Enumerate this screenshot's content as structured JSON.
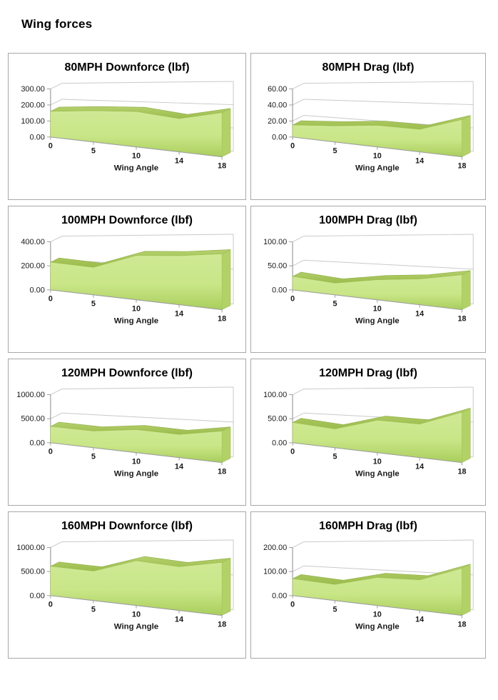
{
  "page": {
    "title": "Wing forces"
  },
  "layout": {
    "columns": 2,
    "rows": 4,
    "grid_on": true,
    "legend": "none"
  },
  "colors": {
    "area_top": "#cfe995",
    "area_mid": "#c9e687",
    "area_bottom": "#a9ce5c",
    "ribbon_light": "#b4d16c",
    "ribbon_dark": "#9cbc4c",
    "ribbon_edge": "#8fae45",
    "side_face": "#b2d166",
    "gridline": "#c9c9c9",
    "axis": "#9e9e9e",
    "text": "#1a1a1a",
    "border": "#a8a8a8"
  },
  "chart_data": [
    {
      "type": "area",
      "title": "80MPH Downforce (lbf)",
      "xlabel": "Wing Angle",
      "categories": [
        "0",
        "5",
        "10",
        "14",
        "18"
      ],
      "values": [
        160,
        175,
        180,
        155,
        190
      ],
      "ylim": [
        0,
        300
      ],
      "yticks": [
        "300.00",
        "200.00",
        "100.00",
        "0.00"
      ]
    },
    {
      "type": "area",
      "title": "80MPH Drag (lbf)",
      "xlabel": "Wing Angle",
      "categories": [
        "0",
        "5",
        "10",
        "14",
        "18"
      ],
      "values": [
        15,
        18,
        22,
        21,
        32
      ],
      "ylim": [
        0,
        60
      ],
      "yticks": [
        "60.00",
        "40.00",
        "20.00",
        "0.00"
      ]
    },
    {
      "type": "area",
      "title": "100MPH Downforce (lbf)",
      "xlabel": "Wing Angle",
      "categories": [
        "0",
        "5",
        "10",
        "14",
        "18"
      ],
      "values": [
        230,
        205,
        300,
        305,
        320
      ],
      "ylim": [
        0,
        400
      ],
      "yticks": [
        "400.00",
        "200.00",
        "0.00"
      ]
    },
    {
      "type": "area",
      "title": "100MPH Drag (lbf)",
      "xlabel": "Wing Angle",
      "categories": [
        "0",
        "5",
        "10",
        "14",
        "18"
      ],
      "values": [
        28,
        22,
        34,
        40,
        50
      ],
      "ylim": [
        0,
        100
      ],
      "yticks": [
        "100.00",
        "50.00",
        "0.00"
      ]
    },
    {
      "type": "area",
      "title": "120MPH Downforce (lbf)",
      "xlabel": "Wing Angle",
      "categories": [
        "0",
        "5",
        "10",
        "14",
        "18"
      ],
      "values": [
        340,
        310,
        390,
        360,
        450
      ],
      "ylim": [
        0,
        1000
      ],
      "yticks": [
        "1000.00",
        "500.00",
        "0.00"
      ]
    },
    {
      "type": "area",
      "title": "120MPH Drag (lbf)",
      "xlabel": "Wing Angle",
      "categories": [
        "0",
        "5",
        "10",
        "14",
        "18"
      ],
      "values": [
        42,
        35,
        55,
        52,
        72
      ],
      "ylim": [
        0,
        100
      ],
      "yticks": [
        "100.00",
        "50.00",
        "0.00"
      ]
    },
    {
      "type": "area",
      "title": "160MPH Downforce (lbf)",
      "xlabel": "Wing Angle",
      "categories": [
        "0",
        "5",
        "10",
        "14",
        "18"
      ],
      "values": [
        610,
        550,
        760,
        680,
        760
      ],
      "ylim": [
        0,
        1000
      ],
      "yticks": [
        "1000.00",
        "500.00",
        "0.00"
      ]
    },
    {
      "type": "area",
      "title": "160MPH Drag (lbf)",
      "xlabel": "Wing Angle",
      "categories": [
        "0",
        "5",
        "10",
        "14",
        "18"
      ],
      "values": [
        70,
        60,
        95,
        95,
        135
      ],
      "ylim": [
        0,
        200
      ],
      "yticks": [
        "200.00",
        "100.00",
        "0.00"
      ]
    }
  ]
}
